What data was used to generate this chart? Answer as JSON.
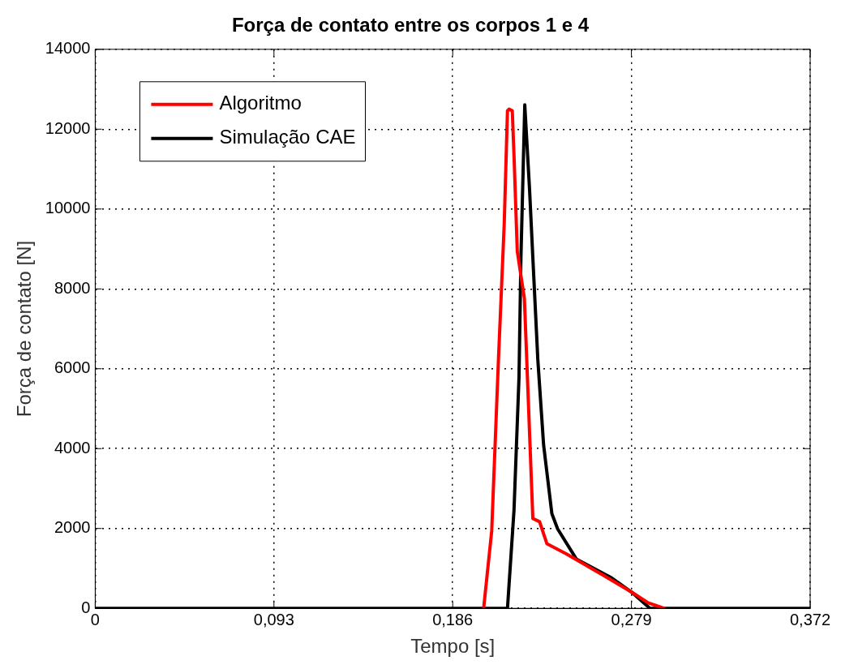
{
  "chart_data": {
    "type": "line",
    "title": "Força de contato entre os corpos 1 e 4",
    "xlabel": "Tempo [s]",
    "ylabel": "Força de contato [N]",
    "xlim": [
      0,
      0.372
    ],
    "xticks": [
      0,
      {
        "value": 0.093,
        "label": "0,093"
      },
      {
        "value": 0.186,
        "label": "0,186"
      },
      {
        "value": 0.279,
        "label": "0,279"
      },
      {
        "value": 0.372,
        "label": "0,372"
      }
    ],
    "ylim": [
      0,
      14000
    ],
    "yticks": [
      0,
      2000,
      4000,
      6000,
      8000,
      10000,
      12000,
      14000
    ],
    "grid": true,
    "legend": "top left",
    "marker": "none",
    "line_style": "solid",
    "series": [
      {
        "name": "Algoritmo",
        "color": "#ff0000",
        "x": [
          0.2021,
          0.2063,
          0.2098,
          0.2128,
          0.2145,
          0.2153,
          0.217,
          0.2179,
          0.2196,
          0.2233,
          0.2277,
          0.2312,
          0.235,
          0.2449,
          0.2646,
          0.279,
          0.2877,
          0.296
        ],
        "values": [
          0,
          1940,
          6220,
          9620,
          12460,
          12500,
          12460,
          11340,
          8940,
          7760,
          2250,
          2170,
          1620,
          1370,
          820,
          410,
          140,
          0
        ]
      },
      {
        "name": "Simulação CAE",
        "color": "#000000",
        "x": [
          0,
          0.2145,
          0.2179,
          0.2205,
          0.2215,
          0.2235,
          0.226,
          0.2277,
          0.2303,
          0.2333,
          0.2376,
          0.2406,
          0.2504,
          0.2688,
          0.279,
          0.2877,
          0.2885,
          0.372
        ],
        "values": [
          0,
          0,
          2460,
          5790,
          8780,
          12610,
          10480,
          8780,
          6220,
          4090,
          2370,
          1990,
          1230,
          760,
          410,
          40,
          0,
          0
        ]
      }
    ]
  }
}
